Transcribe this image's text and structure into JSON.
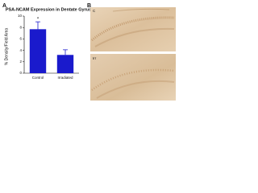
{
  "panel_labels": [
    "A",
    "B"
  ],
  "image_labels": [
    "C",
    "Irr"
  ],
  "chart_data": {
    "type": "bar",
    "title": "PSA-NCAM Expression in Dentate Gyrus",
    "y_label": "% Density/Field Area",
    "categories": [
      "Control",
      "Irradiated"
    ],
    "values": [
      7.7,
      3.2
    ],
    "errors": [
      1.3,
      0.9
    ],
    "color": "#1a1acc",
    "annotation": "*",
    "ylim": [
      0,
      10
    ],
    "yticks": [
      0,
      2,
      4,
      6,
      8,
      10
    ]
  }
}
